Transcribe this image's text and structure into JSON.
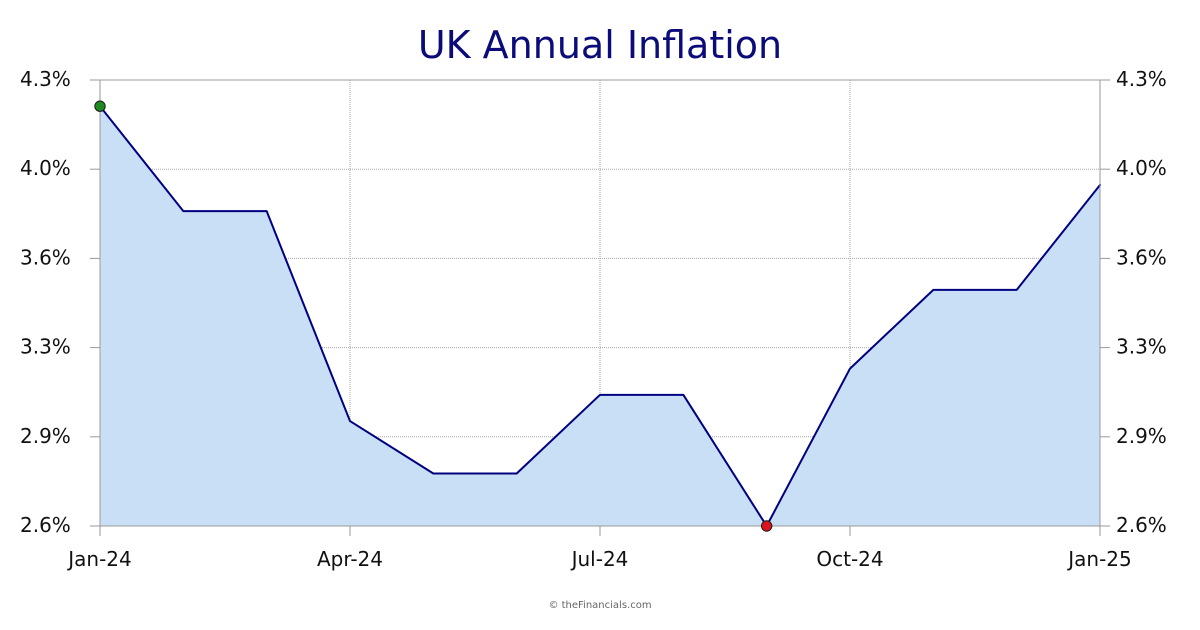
{
  "chart_data": {
    "type": "area",
    "title": "UK Annual Inflation",
    "xlabel": "",
    "ylabel": "",
    "x": [
      "2024-01",
      "2024-02",
      "2024-03",
      "2024-04",
      "2024-05",
      "2024-06",
      "2024-07",
      "2024-08",
      "2024-09",
      "2024-10",
      "2024-11",
      "2024-12",
      "2025-01"
    ],
    "x_tick_labels": [
      "Jan-24",
      "Apr-24",
      "Jul-24",
      "Oct-24",
      "Jan-25"
    ],
    "y_tick_labels": [
      "2.6%",
      "2.9%",
      "3.3%",
      "3.6%",
      "4.0%",
      "4.3%"
    ],
    "ylim": [
      2.6,
      4.3
    ],
    "series": [
      {
        "values": [
          4.2,
          3.8,
          3.8,
          3.0,
          2.8,
          2.8,
          3.1,
          3.1,
          2.6,
          3.2,
          3.5,
          3.5,
          3.9
        ]
      }
    ],
    "markers": {
      "max_color": "#1f8a1f",
      "min_color": "#d9141e"
    },
    "grid": true,
    "right_axis": true,
    "line_color": "#000080",
    "fill_color": "#c9dff6",
    "credit": "© theFinancials.com"
  }
}
